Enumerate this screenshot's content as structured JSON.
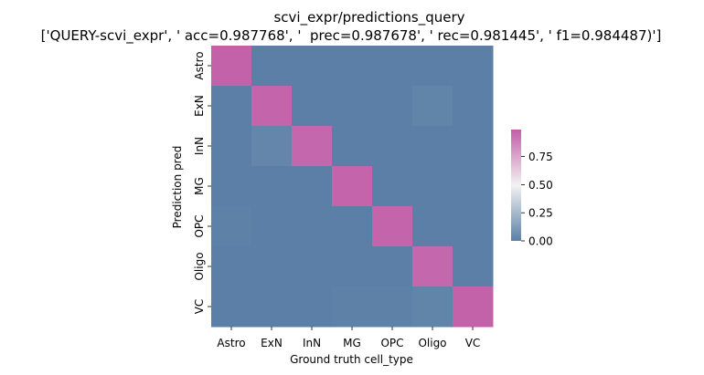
{
  "chart_data": {
    "type": "heatmap",
    "title": "scvi_expr/predictions_query",
    "subtitle": "['QUERY-scvi_expr', ' acc=0.987768', '  prec=0.987678', ' rec=0.981445', ' f1=0.984487)']",
    "xlabel": "Ground truth cell_type",
    "ylabel": "Prediction pred",
    "x_categories": [
      "Astro",
      "ExN",
      "InN",
      "MG",
      "OPC",
      "Oligo",
      "VC"
    ],
    "y_categories": [
      "Astro",
      "ExN",
      "InN",
      "MG",
      "OPC",
      "Oligo",
      "VC"
    ],
    "values": [
      [
        0.99,
        0.0,
        0.0,
        0.0,
        0.0,
        0.0,
        0.0
      ],
      [
        0.0,
        0.98,
        0.0,
        0.0,
        0.0,
        0.02,
        0.0
      ],
      [
        0.0,
        0.03,
        0.97,
        0.0,
        0.0,
        0.0,
        0.0
      ],
      [
        0.0,
        0.0,
        0.0,
        0.98,
        0.0,
        0.0,
        0.0
      ],
      [
        0.01,
        0.0,
        0.0,
        0.0,
        0.98,
        0.0,
        0.0
      ],
      [
        0.0,
        0.0,
        0.0,
        0.0,
        0.0,
        0.97,
        0.0
      ],
      [
        0.0,
        0.0,
        0.0,
        0.01,
        0.01,
        0.02,
        0.99
      ]
    ],
    "colorbar": {
      "range": [
        0,
        1
      ],
      "ticks": [
        0.0,
        0.25,
        0.5,
        0.75
      ],
      "tick_labels": [
        "0.00",
        "0.25",
        "0.50",
        "0.75"
      ],
      "colors": {
        "low": "#5b7fa6",
        "mid": "#f2f2f2",
        "high": "#c25ea7"
      }
    },
    "grid": false,
    "legend": "colorbar-right"
  }
}
